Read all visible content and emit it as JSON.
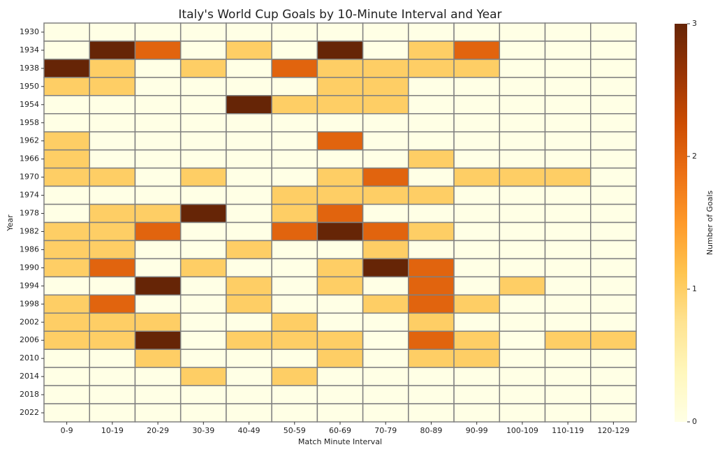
{
  "chart_data": {
    "type": "heatmap",
    "title": "Italy's World Cup Goals by 10-Minute Interval and Year",
    "x_label": "Match Minute Interval",
    "y_label": "Year",
    "x_categories": [
      "0-9",
      "10-19",
      "20-29",
      "30-39",
      "40-49",
      "50-59",
      "60-69",
      "70-79",
      "80-89",
      "90-99",
      "100-109",
      "110-119",
      "120-129"
    ],
    "y_categories": [
      "1930",
      "1934",
      "1938",
      "1950",
      "1954",
      "1958",
      "1962",
      "1966",
      "1970",
      "1974",
      "1978",
      "1982",
      "1986",
      "1990",
      "1994",
      "1998",
      "2002",
      "2006",
      "2010",
      "2014",
      "2018",
      "2022"
    ],
    "values": [
      [
        0,
        0,
        0,
        0,
        0,
        0,
        0,
        0,
        0,
        0,
        0,
        0,
        0
      ],
      [
        0,
        3,
        2,
        0,
        1,
        0,
        3,
        0,
        1,
        2,
        0,
        0,
        0
      ],
      [
        3,
        1,
        0,
        1,
        0,
        2,
        1,
        1,
        1,
        1,
        0,
        0,
        0
      ],
      [
        1,
        1,
        0,
        0,
        0,
        0,
        1,
        1,
        0,
        0,
        0,
        0,
        0
      ],
      [
        0,
        0,
        0,
        0,
        3,
        1,
        1,
        1,
        0,
        0,
        0,
        0,
        0
      ],
      [
        0,
        0,
        0,
        0,
        0,
        0,
        0,
        0,
        0,
        0,
        0,
        0,
        0
      ],
      [
        1,
        0,
        0,
        0,
        0,
        0,
        2,
        0,
        0,
        0,
        0,
        0,
        0
      ],
      [
        1,
        0,
        0,
        0,
        0,
        0,
        0,
        0,
        1,
        0,
        0,
        0,
        0
      ],
      [
        1,
        1,
        0,
        1,
        0,
        0,
        1,
        2,
        0,
        1,
        1,
        1,
        0
      ],
      [
        0,
        0,
        0,
        0,
        0,
        1,
        1,
        1,
        1,
        0,
        0,
        0,
        0
      ],
      [
        0,
        1,
        1,
        3,
        0,
        1,
        2,
        0,
        0,
        0,
        0,
        0,
        0
      ],
      [
        1,
        1,
        2,
        0,
        0,
        2,
        3,
        2,
        1,
        0,
        0,
        0,
        0
      ],
      [
        1,
        1,
        0,
        0,
        1,
        0,
        0,
        1,
        0,
        0,
        0,
        0,
        0
      ],
      [
        1,
        2,
        0,
        1,
        0,
        0,
        1,
        3,
        2,
        0,
        0,
        0,
        0
      ],
      [
        0,
        0,
        3,
        0,
        1,
        0,
        1,
        0,
        2,
        0,
        1,
        0,
        0
      ],
      [
        1,
        2,
        0,
        0,
        1,
        0,
        0,
        1,
        2,
        1,
        0,
        0,
        0
      ],
      [
        1,
        1,
        1,
        0,
        0,
        1,
        0,
        0,
        1,
        0,
        0,
        0,
        0
      ],
      [
        1,
        1,
        3,
        0,
        1,
        1,
        1,
        0,
        2,
        1,
        0,
        1,
        1
      ],
      [
        0,
        0,
        1,
        0,
        0,
        0,
        1,
        0,
        1,
        1,
        0,
        0,
        0
      ],
      [
        0,
        0,
        0,
        1,
        0,
        1,
        0,
        0,
        0,
        0,
        0,
        0,
        0
      ],
      [
        0,
        0,
        0,
        0,
        0,
        0,
        0,
        0,
        0,
        0,
        0,
        0,
        0
      ],
      [
        0,
        0,
        0,
        0,
        0,
        0,
        0,
        0,
        0,
        0,
        0,
        0,
        0
      ]
    ],
    "colormap": [
      "#ffffe5",
      "#fff7bc",
      "#fee391",
      "#fec44f",
      "#fe9929",
      "#ec7014",
      "#cc4c02",
      "#993404",
      "#662506"
    ],
    "cell_border": "#808080",
    "colorbar": {
      "label": "Number of Goals",
      "lim": [
        0,
        3
      ],
      "ticks": [
        0,
        1,
        2,
        3
      ]
    }
  }
}
